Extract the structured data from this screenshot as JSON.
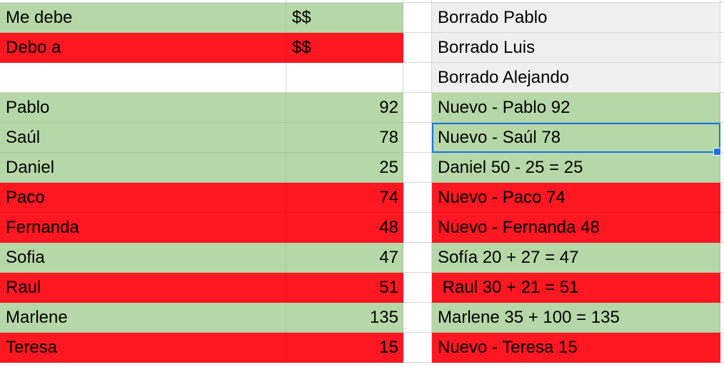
{
  "left_table": {
    "header": [
      {
        "name": "Me debe",
        "value": "$$",
        "color": "green"
      },
      {
        "name": "Debo a",
        "value": "$$",
        "color": "red"
      }
    ],
    "rows": [
      {
        "name": "Pablo",
        "value": "92",
        "color": "green"
      },
      {
        "name": "Saúl",
        "value": "78",
        "color": "green"
      },
      {
        "name": "Daniel",
        "value": "25",
        "color": "green"
      },
      {
        "name": "Paco",
        "value": "74",
        "color": "red"
      },
      {
        "name": "Fernanda",
        "value": "48",
        "color": "red"
      },
      {
        "name": "Sofia",
        "value": "47",
        "color": "green"
      },
      {
        "name": "Raul",
        "value": "51",
        "color": "red"
      },
      {
        "name": "Marlene",
        "value": "135",
        "color": "green"
      },
      {
        "name": "Teresa",
        "value": "15",
        "color": "red"
      }
    ]
  },
  "right_column": [
    {
      "text": "Borrado Pablo",
      "color": "gray"
    },
    {
      "text": "Borrado Luis",
      "color": "gray"
    },
    {
      "text": "Borrado Alejando",
      "color": "gray"
    },
    {
      "text": "Nuevo - Pablo 92",
      "color": "green"
    },
    {
      "text": "Nuevo - Saúl 78",
      "color": "green",
      "selected": true
    },
    {
      "text": "Daniel 50 - 25 = 25",
      "color": "green"
    },
    {
      "text": "Nuevo - Paco 74",
      "color": "red"
    },
    {
      "text": "Nuevo - Fernanda 48",
      "color": "red"
    },
    {
      "text": "Sofía 20 + 27 = 47",
      "color": "green"
    },
    {
      "text": " Raul 30 + 21 = 51",
      "color": "red"
    },
    {
      "text": "Marlene 35 + 100 = 135",
      "color": "green"
    },
    {
      "text": "Nuevo - Teresa 15",
      "color": "red"
    }
  ],
  "colors": {
    "green": "#b6d7a8",
    "red": "#ff1722",
    "gray": "#efefef",
    "selection": "#1a73e8"
  }
}
